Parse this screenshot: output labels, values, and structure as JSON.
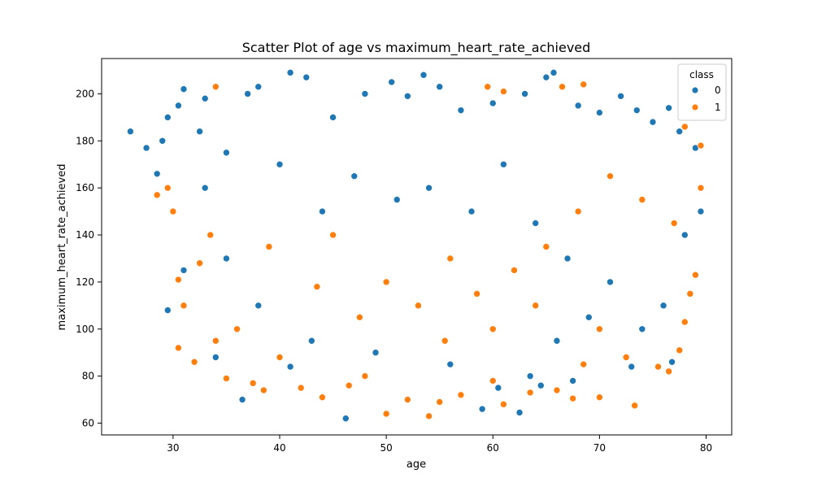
{
  "chart_data": {
    "type": "scatter",
    "title": "Scatter Plot of age vs maximum_heart_rate_achieved",
    "xlabel": "age",
    "ylabel": "maximum_heart_rate_achieved",
    "xlim": [
      23.3,
      82.4
    ],
    "ylim": [
      55.0,
      215.0
    ],
    "xticks": [
      30,
      40,
      50,
      60,
      70,
      80
    ],
    "yticks": [
      60,
      80,
      100,
      120,
      140,
      160,
      180,
      200
    ],
    "grid": false,
    "legend": {
      "title": "class",
      "placement": "top-right",
      "entries": [
        {
          "label": "0",
          "color": "#1f77b4"
        },
        {
          "label": "1",
          "color": "#ff7f0e"
        }
      ]
    },
    "series": [
      {
        "name": "0",
        "color": "#1f77b4",
        "points": [
          [
            26.0,
            184
          ],
          [
            27.5,
            177
          ],
          [
            28.5,
            166
          ],
          [
            29.0,
            180
          ],
          [
            29.5,
            190
          ],
          [
            30.5,
            195
          ],
          [
            31.0,
            202
          ],
          [
            32.5,
            184
          ],
          [
            33.0,
            198
          ],
          [
            35.0,
            175
          ],
          [
            37.0,
            200
          ],
          [
            38.0,
            203
          ],
          [
            41.0,
            209
          ],
          [
            42.5,
            207
          ],
          [
            45.0,
            190
          ],
          [
            48.0,
            200
          ],
          [
            50.5,
            205
          ],
          [
            52.0,
            199
          ],
          [
            53.5,
            208
          ],
          [
            55.0,
            203
          ],
          [
            57.0,
            193
          ],
          [
            60.0,
            196
          ],
          [
            63.0,
            200
          ],
          [
            65.0,
            207
          ],
          [
            65.7,
            209
          ],
          [
            68.0,
            195
          ],
          [
            70.0,
            192
          ],
          [
            72.0,
            199
          ],
          [
            73.5,
            193
          ],
          [
            75.0,
            188
          ],
          [
            76.5,
            194
          ],
          [
            77.5,
            184
          ],
          [
            79.0,
            177
          ],
          [
            79.5,
            150
          ],
          [
            78.0,
            140
          ],
          [
            36.5,
            70
          ],
          [
            46.2,
            62
          ],
          [
            59.0,
            66
          ],
          [
            62.5,
            64.5
          ],
          [
            52.0,
            70
          ],
          [
            29.5,
            108
          ],
          [
            31.0,
            125
          ],
          [
            33.0,
            160
          ],
          [
            40.0,
            170
          ],
          [
            44.0,
            150
          ],
          [
            47.0,
            165
          ],
          [
            51.0,
            155
          ],
          [
            54.0,
            160
          ],
          [
            58.0,
            150
          ],
          [
            61.0,
            170
          ],
          [
            64.0,
            145
          ],
          [
            67.0,
            130
          ],
          [
            71.0,
            120
          ],
          [
            74.0,
            100
          ],
          [
            76.0,
            110
          ],
          [
            69.0,
            105
          ],
          [
            66.0,
            95
          ],
          [
            63.5,
            80
          ],
          [
            67.5,
            78
          ],
          [
            60.5,
            75
          ],
          [
            56.0,
            85
          ],
          [
            49.0,
            90
          ],
          [
            43.0,
            95
          ],
          [
            38.0,
            110
          ],
          [
            35.0,
            130
          ],
          [
            34.0,
            88
          ],
          [
            41.0,
            84
          ],
          [
            64.5,
            76
          ],
          [
            73.0,
            84
          ],
          [
            76.8,
            86
          ]
        ]
      },
      {
        "name": "1",
        "color": "#ff7f0e",
        "points": [
          [
            28.5,
            157
          ],
          [
            29.5,
            160
          ],
          [
            30.0,
            150
          ],
          [
            30.5,
            121
          ],
          [
            30.5,
            92
          ],
          [
            31.0,
            110
          ],
          [
            32.0,
            86
          ],
          [
            32.5,
            128
          ],
          [
            33.5,
            140
          ],
          [
            34.0,
            95
          ],
          [
            35.0,
            79
          ],
          [
            36.0,
            100
          ],
          [
            37.5,
            77
          ],
          [
            38.5,
            74
          ],
          [
            40.0,
            88
          ],
          [
            42.0,
            75
          ],
          [
            44.0,
            71
          ],
          [
            46.5,
            76
          ],
          [
            48.0,
            80
          ],
          [
            50.0,
            64
          ],
          [
            52.0,
            70
          ],
          [
            54.0,
            63
          ],
          [
            55.0,
            69
          ],
          [
            57.0,
            72
          ],
          [
            60.0,
            78
          ],
          [
            61.0,
            68
          ],
          [
            63.5,
            73
          ],
          [
            66.0,
            74
          ],
          [
            67.5,
            70.5
          ],
          [
            70.0,
            71
          ],
          [
            73.3,
            67.5
          ],
          [
            75.5,
            84
          ],
          [
            76.5,
            82
          ],
          [
            77.5,
            91
          ],
          [
            78.0,
            103
          ],
          [
            78.5,
            115
          ],
          [
            79.0,
            123
          ],
          [
            79.5,
            160
          ],
          [
            79.5,
            178
          ],
          [
            78.0,
            186
          ],
          [
            59.5,
            203
          ],
          [
            61.0,
            201
          ],
          [
            66.5,
            203
          ],
          [
            68.5,
            204
          ],
          [
            34.0,
            203
          ],
          [
            45.0,
            140
          ],
          [
            50.0,
            120
          ],
          [
            53.0,
            110
          ],
          [
            56.0,
            130
          ],
          [
            58.5,
            115
          ],
          [
            62.0,
            125
          ],
          [
            65.0,
            135
          ],
          [
            68.0,
            150
          ],
          [
            71.0,
            165
          ],
          [
            74.0,
            155
          ],
          [
            77.0,
            145
          ],
          [
            47.5,
            105
          ],
          [
            43.5,
            118
          ],
          [
            39.0,
            135
          ],
          [
            55.5,
            95
          ],
          [
            60.0,
            100
          ],
          [
            64.0,
            110
          ],
          [
            70.0,
            100
          ],
          [
            72.5,
            88
          ],
          [
            68.5,
            85
          ]
        ]
      }
    ]
  }
}
